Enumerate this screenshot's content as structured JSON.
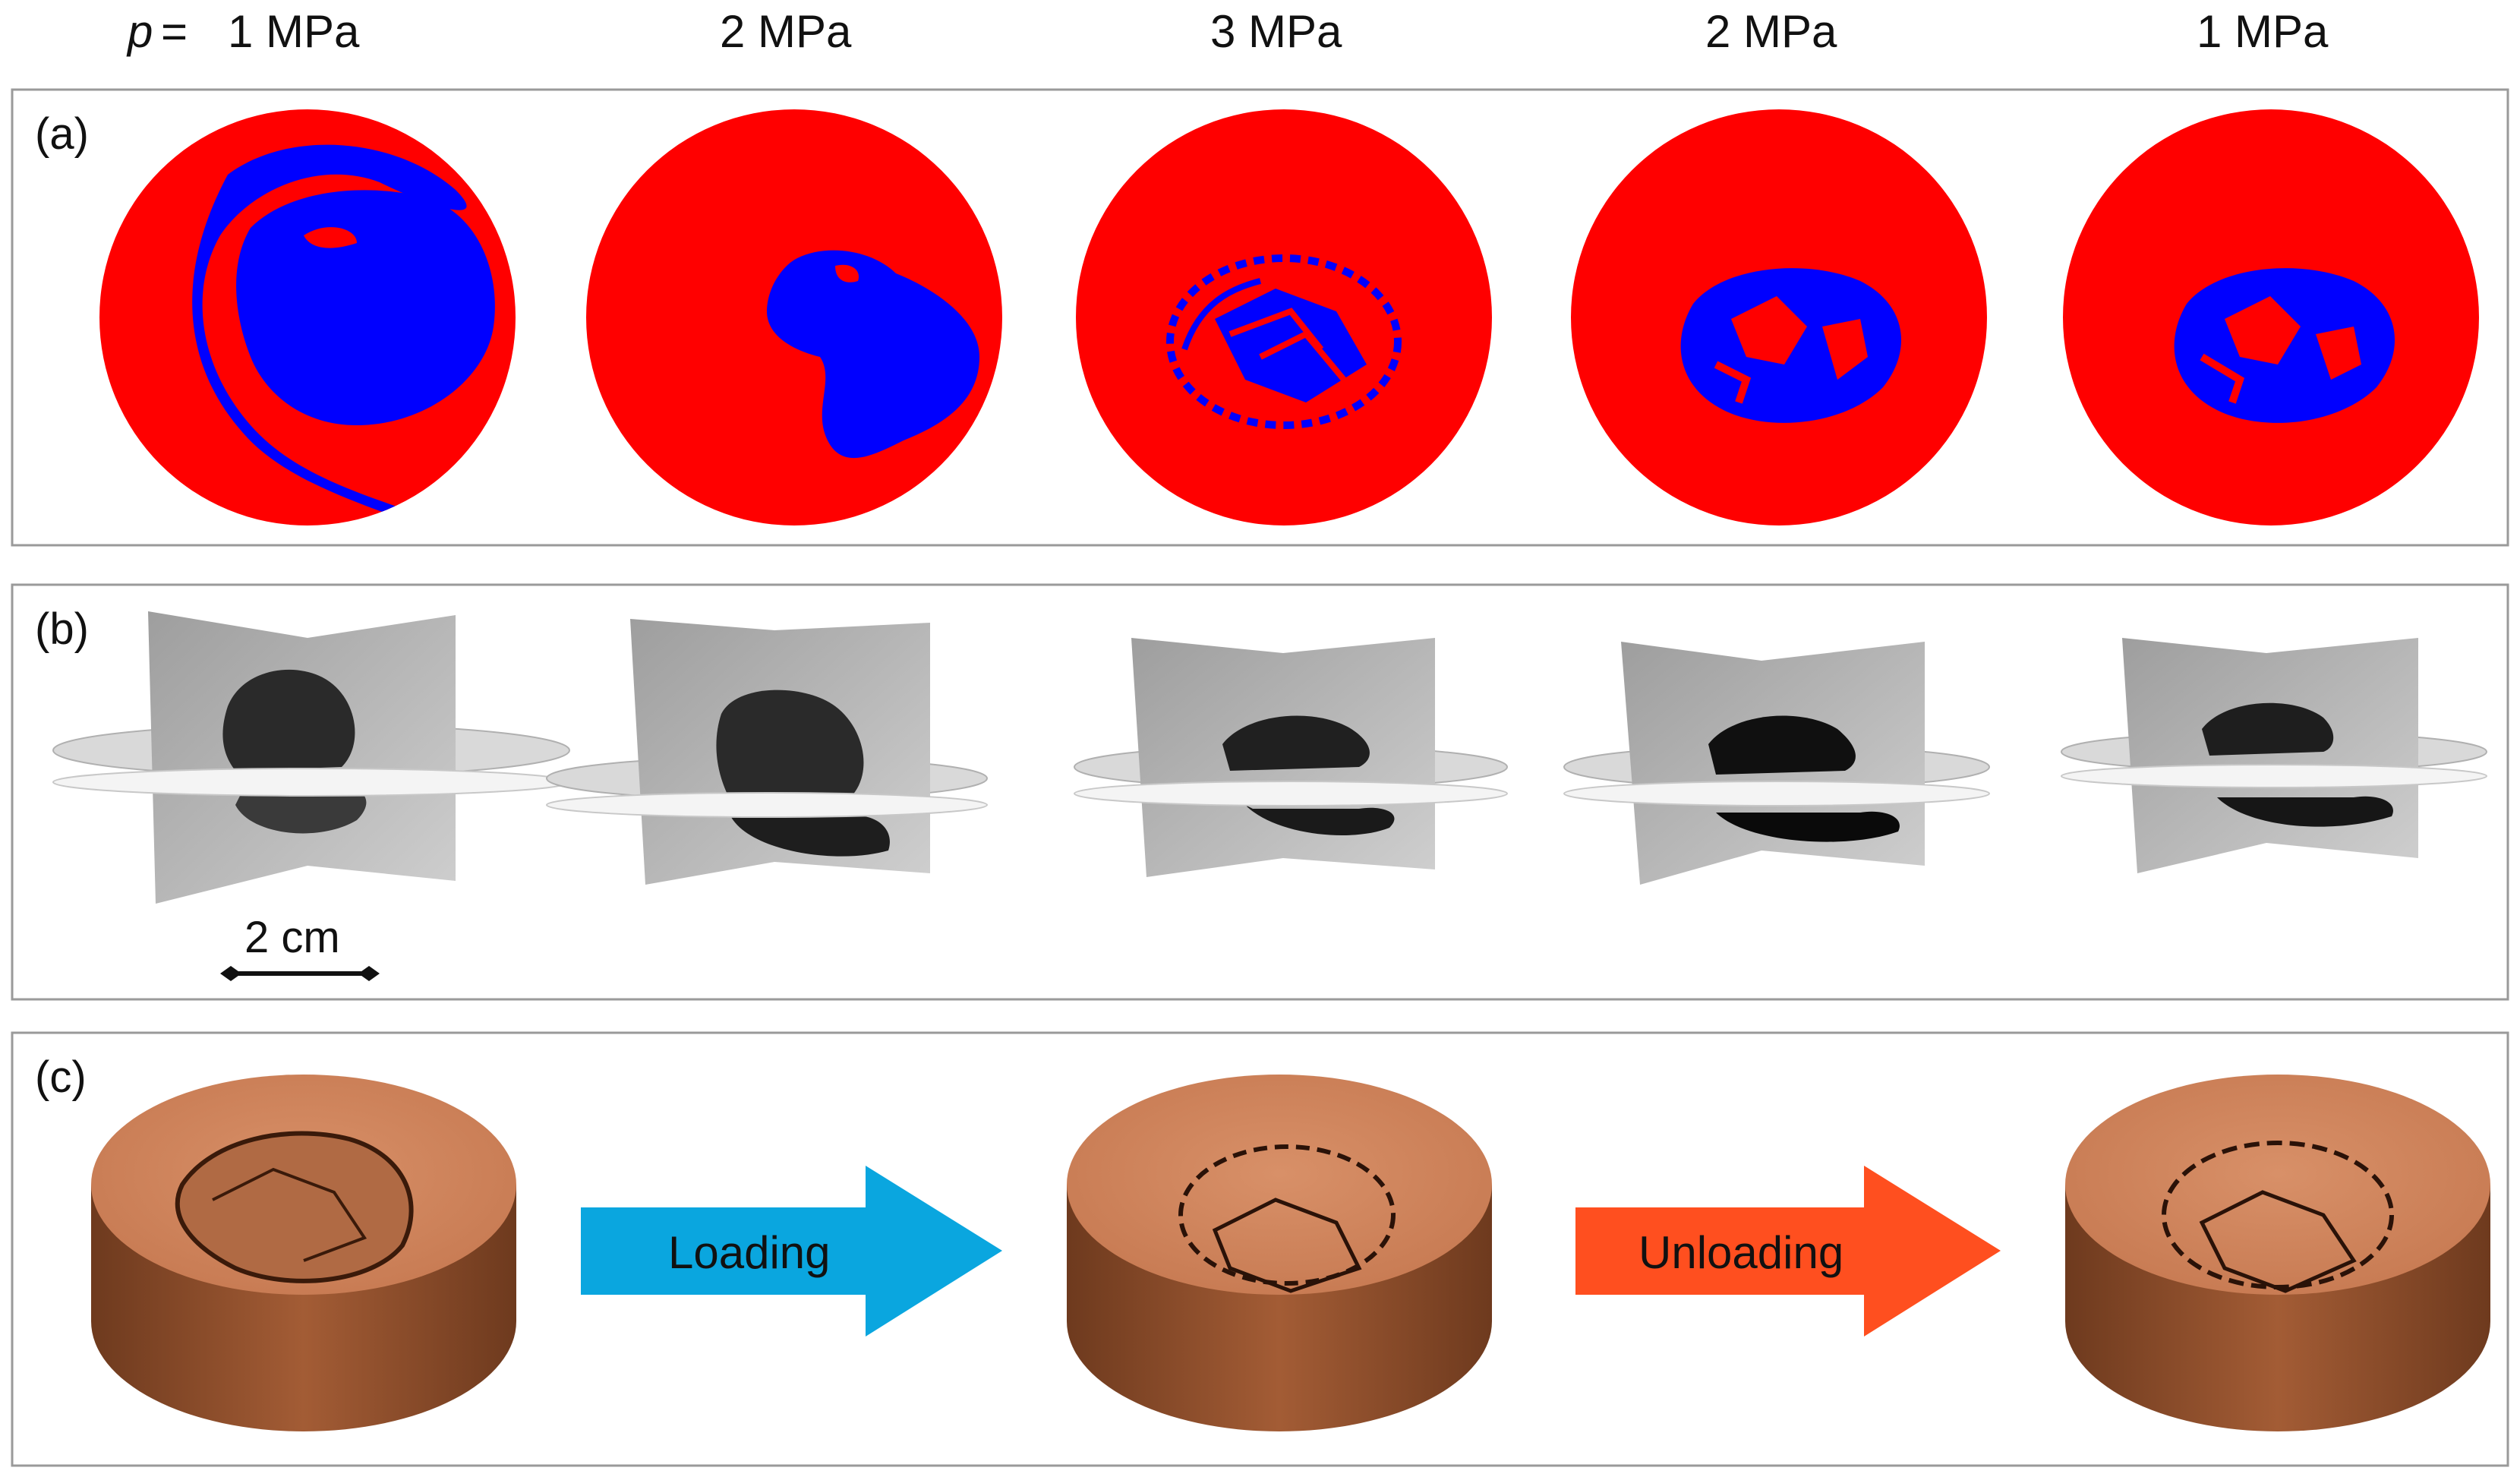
{
  "header": {
    "p_symbol": "p",
    "p_equals": "=",
    "pressures": [
      "1 MPa",
      "2 MPa",
      "3 MPa",
      "2 MPa",
      "1 MPa"
    ]
  },
  "panels": {
    "a_label": "(a)",
    "b_label": "(b)",
    "c_label": "(c)"
  },
  "scale_bar": {
    "label": "2 cm"
  },
  "arrows": {
    "loading": {
      "label": "Loading",
      "color": "#0aa6df"
    },
    "unloading": {
      "label": "Unloading",
      "color": "#ff4f1f"
    }
  },
  "colors": {
    "phase_red": "#ff0000",
    "phase_blue": "#0000ff",
    "sample_top": "#d4875e",
    "sample_side": "#8a4a2a",
    "ct_gray": "#b8b8b8",
    "ct_dark": "#2a2a2a",
    "panel_border": "#9a9a9a"
  }
}
